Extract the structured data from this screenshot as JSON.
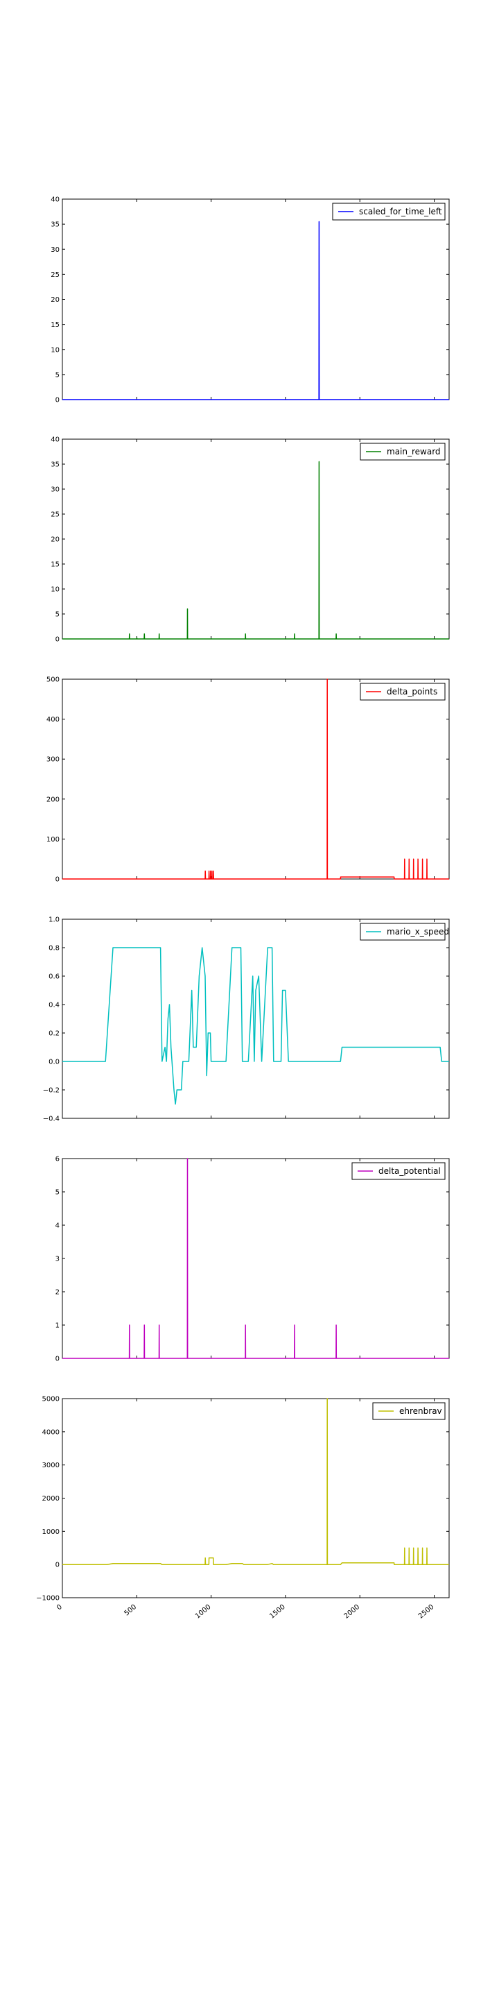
{
  "chart_data": [
    {
      "type": "line",
      "series": [
        {
          "name": "scaled_for_time_left",
          "color": "#0000ff",
          "points": [
            [
              0,
              0
            ],
            [
              1725,
              0
            ],
            [
              1726,
              35.5
            ],
            [
              1727,
              0
            ],
            [
              2600,
              0
            ]
          ]
        }
      ],
      "ylim": [
        0,
        40
      ],
      "yticks": [
        "0",
        "5",
        "10",
        "15",
        "20",
        "25",
        "30",
        "35",
        "40"
      ],
      "xlim": [
        0,
        2600
      ],
      "grid": false,
      "legend": "top-right"
    },
    {
      "type": "line",
      "series": [
        {
          "name": "main_reward",
          "color": "#008000",
          "points": [
            [
              0,
              0
            ],
            [
              450,
              0
            ],
            [
              451,
              1
            ],
            [
              452,
              0
            ],
            [
              500,
              0
            ],
            [
              501,
              0.2
            ],
            [
              502,
              0
            ],
            [
              550,
              0
            ],
            [
              551,
              1
            ],
            [
              552,
              0
            ],
            [
              650,
              0
            ],
            [
              651,
              1
            ],
            [
              652,
              0
            ],
            [
              840,
              0
            ],
            [
              841,
              6
            ],
            [
              842,
              0
            ],
            [
              1230,
              0
            ],
            [
              1231,
              1
            ],
            [
              1232,
              0
            ],
            [
              1560,
              0
            ],
            [
              1561,
              1
            ],
            [
              1562,
              0
            ],
            [
              1725,
              0
            ],
            [
              1726,
              35.5
            ],
            [
              1727,
              0
            ],
            [
              1840,
              0
            ],
            [
              1841,
              1
            ],
            [
              1842,
              0
            ],
            [
              2600,
              0
            ]
          ]
        }
      ],
      "ylim": [
        0,
        40
      ],
      "yticks": [
        "0",
        "5",
        "10",
        "15",
        "20",
        "25",
        "30",
        "35",
        "40"
      ],
      "xlim": [
        0,
        2600
      ],
      "grid": false,
      "legend": "top-right"
    },
    {
      "type": "line",
      "series": [
        {
          "name": "delta_points",
          "color": "#ff0000",
          "points": [
            [
              0,
              0
            ],
            [
              960,
              0
            ],
            [
              961,
              20
            ],
            [
              962,
              0
            ],
            [
              985,
              0
            ],
            [
              986,
              20
            ],
            [
              987,
              0
            ],
            [
              995,
              0
            ],
            [
              996,
              20
            ],
            [
              997,
              0
            ],
            [
              1005,
              0
            ],
            [
              1006,
              20
            ],
            [
              1007,
              0
            ],
            [
              1015,
              0
            ],
            [
              1016,
              20
            ],
            [
              1017,
              0
            ],
            [
              1780,
              0
            ],
            [
              1781,
              500
            ],
            [
              1782,
              0
            ],
            [
              1870,
              0
            ],
            [
              1871,
              5
            ],
            [
              2230,
              5
            ],
            [
              2231,
              0
            ],
            [
              2300,
              0
            ],
            [
              2301,
              50
            ],
            [
              2302,
              0
            ],
            [
              2330,
              0
            ],
            [
              2331,
              50
            ],
            [
              2332,
              0
            ],
            [
              2360,
              0
            ],
            [
              2361,
              50
            ],
            [
              2362,
              0
            ],
            [
              2390,
              0
            ],
            [
              2391,
              50
            ],
            [
              2392,
              0
            ],
            [
              2420,
              0
            ],
            [
              2421,
              50
            ],
            [
              2422,
              0
            ],
            [
              2450,
              0
            ],
            [
              2451,
              50
            ],
            [
              2452,
              0
            ],
            [
              2600,
              0
            ]
          ]
        }
      ],
      "ylim": [
        0,
        500
      ],
      "yticks": [
        "0",
        "100",
        "200",
        "300",
        "400",
        "500"
      ],
      "xlim": [
        0,
        2600
      ],
      "grid": false,
      "legend": "top-right"
    },
    {
      "type": "line",
      "series": [
        {
          "name": "mario_x_speed",
          "color": "#00bfbf",
          "points": [
            [
              0,
              0
            ],
            [
              290,
              0
            ],
            [
              340,
              0.8
            ],
            [
              660,
              0.8
            ],
            [
              670,
              0
            ],
            [
              690,
              0.1
            ],
            [
              700,
              0
            ],
            [
              710,
              0.3
            ],
            [
              720,
              0.4
            ],
            [
              730,
              0.1
            ],
            [
              750,
              -0.2
            ],
            [
              760,
              -0.3
            ],
            [
              770,
              -0.2
            ],
            [
              800,
              -0.2
            ],
            [
              810,
              0
            ],
            [
              850,
              0
            ],
            [
              870,
              0.5
            ],
            [
              880,
              0.1
            ],
            [
              900,
              0.1
            ],
            [
              920,
              0.6
            ],
            [
              940,
              0.8
            ],
            [
              960,
              0.6
            ],
            [
              970,
              -0.1
            ],
            [
              980,
              0.2
            ],
            [
              995,
              0.2
            ],
            [
              1000,
              0
            ],
            [
              1100,
              0
            ],
            [
              1140,
              0.8
            ],
            [
              1200,
              0.8
            ],
            [
              1210,
              0
            ],
            [
              1250,
              0
            ],
            [
              1270,
              0.4
            ],
            [
              1280,
              0.6
            ],
            [
              1290,
              0
            ],
            [
              1300,
              0.5
            ],
            [
              1320,
              0.6
            ],
            [
              1340,
              0
            ],
            [
              1360,
              0.4
            ],
            [
              1380,
              0.8
            ],
            [
              1410,
              0.8
            ],
            [
              1420,
              0
            ],
            [
              1460,
              0
            ],
            [
              1470,
              0
            ],
            [
              1480,
              0.5
            ],
            [
              1500,
              0.5
            ],
            [
              1520,
              0
            ],
            [
              1870,
              0
            ],
            [
              1880,
              0.1
            ],
            [
              2540,
              0.1
            ],
            [
              2550,
              0
            ],
            [
              2600,
              0
            ]
          ]
        }
      ],
      "ylim": [
        -0.4,
        1.0
      ],
      "yticks": [
        "−0.4",
        "−0.2",
        "0.0",
        "0.2",
        "0.4",
        "0.6",
        "0.8",
        "1.0"
      ],
      "xlim": [
        0,
        2600
      ],
      "grid": false,
      "legend": "top-right"
    },
    {
      "type": "line",
      "series": [
        {
          "name": "delta_potential",
          "color": "#bf00bf",
          "points": [
            [
              0,
              0
            ],
            [
              450,
              0
            ],
            [
              451,
              1
            ],
            [
              452,
              0
            ],
            [
              550,
              0
            ],
            [
              551,
              1
            ],
            [
              552,
              0
            ],
            [
              650,
              0
            ],
            [
              651,
              1
            ],
            [
              652,
              0
            ],
            [
              840,
              0
            ],
            [
              841,
              6
            ],
            [
              842,
              0
            ],
            [
              1230,
              0
            ],
            [
              1231,
              1
            ],
            [
              1232,
              0
            ],
            [
              1560,
              0
            ],
            [
              1561,
              1
            ],
            [
              1562,
              0
            ],
            [
              1840,
              0
            ],
            [
              1841,
              1
            ],
            [
              1842,
              0
            ],
            [
              2600,
              0
            ]
          ]
        }
      ],
      "ylim": [
        0,
        6
      ],
      "yticks": [
        "0",
        "1",
        "2",
        "3",
        "4",
        "5",
        "6"
      ],
      "xlim": [
        0,
        2600
      ],
      "grid": false,
      "legend": "top-right"
    },
    {
      "type": "line",
      "series": [
        {
          "name": "ehrenbrav",
          "color": "#bfbf00",
          "points": [
            [
              0,
              0
            ],
            [
              300,
              0
            ],
            [
              340,
              30
            ],
            [
              660,
              30
            ],
            [
              670,
              0
            ],
            [
              960,
              0
            ],
            [
              961,
              200
            ],
            [
              962,
              0
            ],
            [
              985,
              0
            ],
            [
              986,
              200
            ],
            [
              990,
              200
            ],
            [
              1015,
              200
            ],
            [
              1016,
              0
            ],
            [
              1100,
              0
            ],
            [
              1140,
              30
            ],
            [
              1210,
              30
            ],
            [
              1220,
              0
            ],
            [
              1380,
              0
            ],
            [
              1410,
              30
            ],
            [
              1420,
              0
            ],
            [
              1780,
              0
            ],
            [
              1781,
              5000
            ],
            [
              1782,
              0
            ],
            [
              1870,
              0
            ],
            [
              1880,
              50
            ],
            [
              2230,
              50
            ],
            [
              2231,
              0
            ],
            [
              2300,
              0
            ],
            [
              2301,
              500
            ],
            [
              2302,
              0
            ],
            [
              2330,
              0
            ],
            [
              2331,
              500
            ],
            [
              2332,
              0
            ],
            [
              2360,
              0
            ],
            [
              2361,
              500
            ],
            [
              2362,
              0
            ],
            [
              2390,
              0
            ],
            [
              2391,
              500
            ],
            [
              2392,
              0
            ],
            [
              2420,
              0
            ],
            [
              2421,
              500
            ],
            [
              2422,
              0
            ],
            [
              2450,
              0
            ],
            [
              2451,
              500
            ],
            [
              2452,
              0
            ],
            [
              2600,
              0
            ]
          ]
        }
      ],
      "ylim": [
        -1000,
        5000
      ],
      "yticks": [
        "−1000",
        "0",
        "1000",
        "2000",
        "3000",
        "4000",
        "5000"
      ],
      "xlim": [
        0,
        2600
      ],
      "grid": false,
      "legend": "top-right",
      "xticks": [
        "0",
        "500",
        "1000",
        "1500",
        "2000",
        "2500"
      ]
    }
  ]
}
